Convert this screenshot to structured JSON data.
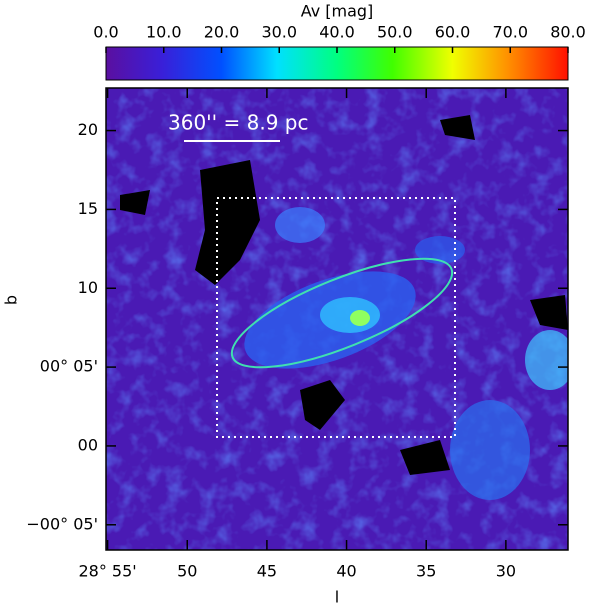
{
  "chart_data": {
    "type": "image",
    "colorbar_label": "Av [mag]",
    "clim": [
      0,
      80
    ],
    "cticks": [
      {
        "value": 0,
        "label": "0.0"
      },
      {
        "value": 10,
        "label": "10.0"
      },
      {
        "value": 20,
        "label": "20.0"
      },
      {
        "value": 30,
        "label": "30.0"
      },
      {
        "value": 40,
        "label": "40.0"
      },
      {
        "value": 50,
        "label": "50.0"
      },
      {
        "value": 60,
        "label": "60.0"
      },
      {
        "value": 70,
        "label": "70.0"
      },
      {
        "value": 80,
        "label": "80.0"
      }
    ],
    "x_label": "l",
    "y_label": "b",
    "xlim": [
      55.1,
      26.1
    ],
    "xticks": [
      {
        "value": 55,
        "label": "28° 55'"
      },
      50,
      45,
      40,
      35,
      30
    ],
    "ylim": [
      -6.6,
      22.7
    ],
    "yticks": [
      {
        "value": -5,
        "label": "−00° 05'"
      },
      {
        "value": 0,
        "label": "00"
      },
      {
        "value": 5,
        "label": "00° 05'"
      },
      10,
      15,
      20
    ],
    "annotation": "360'' = 8.9 pc"
  }
}
